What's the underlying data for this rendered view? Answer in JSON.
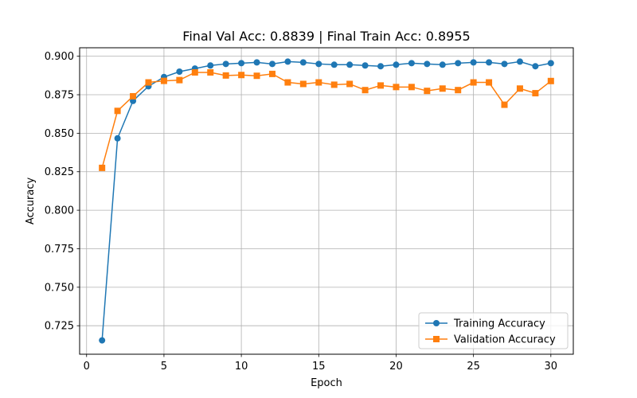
{
  "chart_data": {
    "type": "line",
    "title": "Final Val Acc: 0.8839 | Final Train Acc: 0.8955",
    "xlabel": "Epoch",
    "ylabel": "Accuracy",
    "xlim": [
      -0.45,
      31.45
    ],
    "ylim": [
      0.7065,
      0.9055
    ],
    "xticks": [
      0,
      5,
      10,
      15,
      20,
      25,
      30
    ],
    "yticks": [
      0.725,
      0.75,
      0.775,
      0.8,
      0.825,
      0.85,
      0.875,
      0.9
    ],
    "ytick_labels": [
      "0.725",
      "0.750",
      "0.775",
      "0.800",
      "0.825",
      "0.850",
      "0.875",
      "0.900"
    ],
    "grid": true,
    "legend_position": "lower right",
    "x": [
      1,
      2,
      3,
      4,
      5,
      6,
      7,
      8,
      9,
      10,
      11,
      12,
      13,
      14,
      15,
      16,
      17,
      18,
      19,
      20,
      21,
      22,
      23,
      24,
      25,
      26,
      27,
      28,
      29,
      30
    ],
    "series": [
      {
        "name": "Training Accuracy",
        "color": "#1f77b4",
        "marker": "circle",
        "values": [
          0.7155,
          0.8467,
          0.871,
          0.8805,
          0.8865,
          0.89,
          0.892,
          0.894,
          0.895,
          0.8955,
          0.896,
          0.895,
          0.8965,
          0.896,
          0.895,
          0.8945,
          0.8945,
          0.894,
          0.8935,
          0.8945,
          0.8955,
          0.895,
          0.8945,
          0.8955,
          0.896,
          0.896,
          0.895,
          0.8965,
          0.8935,
          0.8955
        ]
      },
      {
        "name": "Validation Accuracy",
        "color": "#ff7f0e",
        "marker": "square",
        "values": [
          0.8275,
          0.8645,
          0.874,
          0.883,
          0.884,
          0.8845,
          0.8895,
          0.8895,
          0.8875,
          0.8878,
          0.8873,
          0.8885,
          0.883,
          0.882,
          0.883,
          0.8815,
          0.882,
          0.878,
          0.881,
          0.88,
          0.88,
          0.8775,
          0.879,
          0.878,
          0.883,
          0.883,
          0.8685,
          0.879,
          0.876,
          0.8839
        ]
      }
    ]
  }
}
